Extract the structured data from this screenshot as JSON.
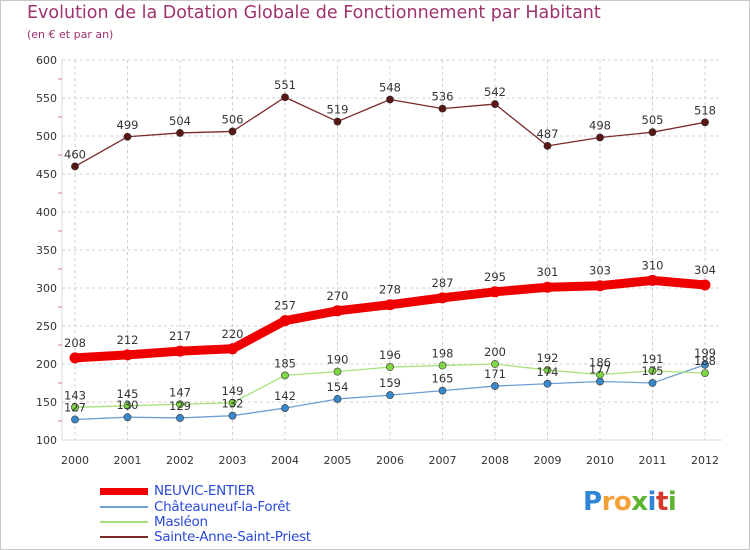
{
  "title": "Evolution de la Dotation Globale de Fonctionnement par Habitant",
  "subtitle": "(en € et par an)",
  "logo": "Proxiti",
  "colors": {
    "title": "#a0326e",
    "axis": "#d9d9d9",
    "grid": "#d0d0d0",
    "tick_text": "#333333",
    "label_text": "#333333",
    "legend_text": "#2a4bd7"
  },
  "chart_data": {
    "type": "line",
    "title": "Evolution de la Dotation Globale de Fonctionnement par Habitant",
    "subtitle": "(en € et par an)",
    "xlabel": "",
    "ylabel": "",
    "categories": [
      "2000",
      "2001",
      "2002",
      "2003",
      "2004",
      "2005",
      "2006",
      "2007",
      "2008",
      "2009",
      "2010",
      "2011",
      "2012"
    ],
    "ylim": [
      100,
      600
    ],
    "yticks": [
      100,
      150,
      200,
      250,
      300,
      350,
      400,
      450,
      500,
      550,
      600
    ],
    "grid": true,
    "legend_position": "bottom-left",
    "series": [
      {
        "name": "NEUVIC-ENTIER",
        "color": "#ee0000",
        "marker_color": "#ee0000",
        "thick": true,
        "values": [
          208,
          212,
          217,
          220,
          257,
          270,
          278,
          287,
          295,
          301,
          303,
          310,
          304
        ],
        "labels": [
          "208",
          "212",
          "217",
          "220",
          "257",
          "270",
          "278",
          "287",
          "295",
          "301",
          "303",
          "310",
          "304"
        ]
      },
      {
        "name": "Châteauneuf-la-Forêt",
        "color": "#6e9fd2",
        "marker_color": "#3a88cc",
        "thick": false,
        "values": [
          127,
          130,
          129,
          132,
          142,
          154,
          159,
          165,
          171,
          174,
          177,
          175,
          199
        ],
        "labels": [
          "127",
          "130",
          "129",
          "132",
          "142",
          "154",
          "159",
          "165",
          "171",
          "174",
          "177",
          "175",
          "199"
        ]
      },
      {
        "name": "Masléon",
        "color": "#a6e27a",
        "marker_color": "#7ed645",
        "thick": false,
        "values": [
          143,
          145,
          147,
          149,
          185,
          190,
          196,
          198,
          200,
          192,
          186,
          191,
          188
        ],
        "labels": [
          "143",
          "145",
          "147",
          "149",
          "185",
          "190",
          "196",
          "198",
          "200",
          "192",
          "186",
          "191",
          "188"
        ]
      },
      {
        "name": "Sainte-Anne-Saint-Priest",
        "color": "#7a2a2a",
        "marker_color": "#5a1515",
        "thick": false,
        "values": [
          460,
          499,
          504,
          506,
          551,
          519,
          548,
          536,
          542,
          487,
          498,
          505,
          518
        ],
        "labels": [
          "460",
          "499",
          "504",
          "506",
          "551",
          "519",
          "548",
          "536",
          "542",
          "487",
          "498",
          "505",
          "518"
        ]
      }
    ]
  }
}
